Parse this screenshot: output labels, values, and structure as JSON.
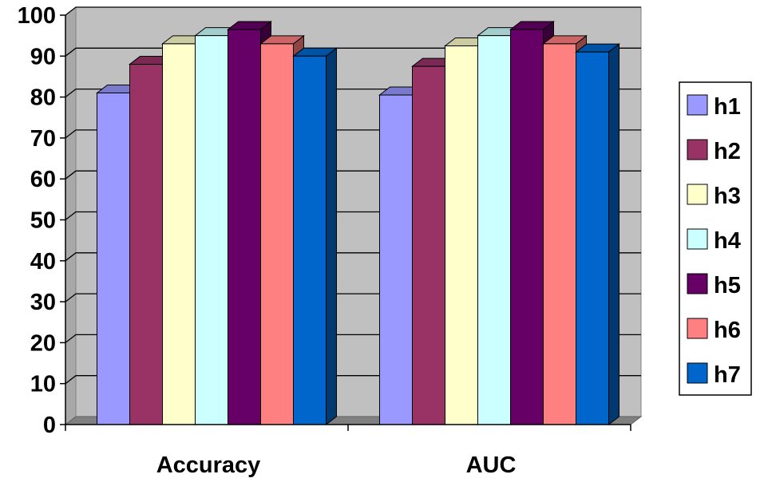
{
  "chart_data": {
    "type": "bar",
    "title": "",
    "xlabel": "",
    "ylabel": "",
    "ylim": [
      0,
      100
    ],
    "yticks": [
      0,
      10,
      20,
      30,
      40,
      50,
      60,
      70,
      80,
      90,
      100
    ],
    "grid": true,
    "three_d": true,
    "legend_position": "right",
    "plot_background": "#c0c0c0",
    "categories": [
      "Accuracy",
      "AUC"
    ],
    "series": [
      {
        "name": "h1",
        "color": "#9999ff",
        "values": [
          81,
          80.5
        ]
      },
      {
        "name": "h2",
        "color": "#993366",
        "values": [
          88,
          87.5
        ]
      },
      {
        "name": "h3",
        "color": "#ffffcc",
        "values": [
          93,
          92.5
        ]
      },
      {
        "name": "h4",
        "color": "#ccffff",
        "values": [
          95,
          95
        ]
      },
      {
        "name": "h5",
        "color": "#660066",
        "values": [
          96.5,
          96.5
        ]
      },
      {
        "name": "h6",
        "color": "#ff8080",
        "values": [
          93,
          93
        ]
      },
      {
        "name": "h7",
        "color": "#0066cc",
        "values": [
          90,
          91
        ]
      }
    ]
  }
}
